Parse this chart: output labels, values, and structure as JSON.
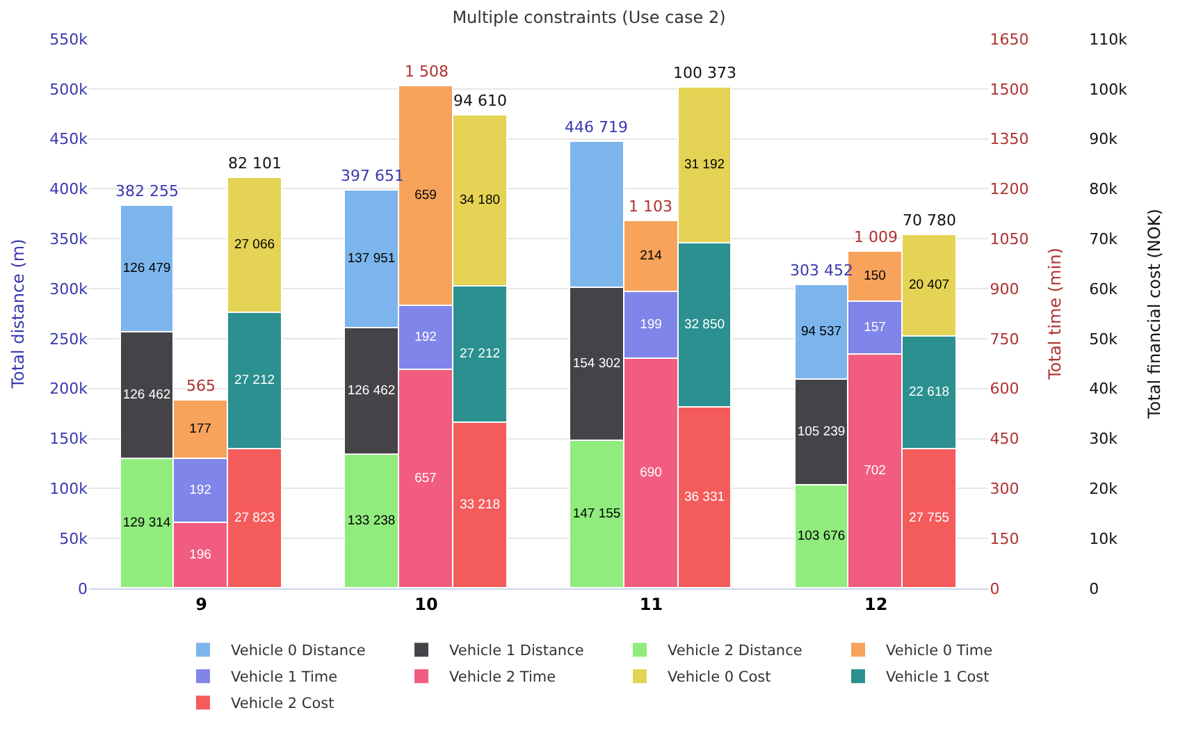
{
  "chart_data": {
    "type": "bar",
    "title": "Multiple constraints (Use case 2)",
    "ylabel": "Total distance (m)",
    "y2label": "Total time (min)",
    "y3label": "Total financial cost (NOK)",
    "categories": [
      "9",
      "10",
      "11",
      "12"
    ],
    "stacked": true,
    "legend": "bottom",
    "grid": "y",
    "ylim": [
      0,
      550000
    ],
    "yticks": [
      0,
      {
        "value": 50000,
        "label": "50k"
      },
      {
        "value": 100000,
        "label": "100k"
      },
      {
        "value": 150000,
        "label": "150k"
      },
      {
        "value": 200000,
        "label": "200k"
      },
      {
        "value": 250000,
        "label": "250k"
      },
      {
        "value": 300000,
        "label": "300k"
      },
      {
        "value": 350000,
        "label": "350k"
      },
      {
        "value": 400000,
        "label": "400k"
      },
      {
        "value": 450000,
        "label": "450k"
      },
      {
        "value": 500000,
        "label": "500k"
      },
      {
        "value": 550000,
        "label": "550k"
      }
    ],
    "y2lim": [
      0,
      1650
    ],
    "y2ticks": [
      0,
      150,
      300,
      450,
      600,
      750,
      900,
      1050,
      1200,
      1350,
      1500,
      1650
    ],
    "y3lim": [
      0,
      110000
    ],
    "y3ticks": [
      0,
      {
        "value": 10000,
        "label": "10k"
      },
      {
        "value": 20000,
        "label": "20k"
      },
      {
        "value": 30000,
        "label": "30k"
      },
      {
        "value": 40000,
        "label": "40k"
      },
      {
        "value": 50000,
        "label": "50k"
      },
      {
        "value": 60000,
        "label": "60k"
      },
      {
        "value": 70000,
        "label": "70k"
      },
      {
        "value": 80000,
        "label": "80k"
      },
      {
        "value": 90000,
        "label": "90k"
      },
      {
        "value": 100000,
        "label": "100k"
      },
      {
        "value": 110000,
        "label": "110k"
      }
    ],
    "series": [
      {
        "name": "Vehicle 2 Distance",
        "color": "#90ed7d",
        "axis": "y",
        "values": [
          129314,
          133238,
          147155,
          103676
        ],
        "value_labels": [
          "129 314",
          "133 238",
          "147 155",
          "103 676"
        ]
      },
      {
        "name": "Vehicle 1 Distance",
        "color": "#434348",
        "axis": "y",
        "values": [
          126462,
          126462,
          154302,
          105239
        ],
        "value_labels": [
          "126 462",
          "126 462",
          "154 302",
          "105 239"
        ]
      },
      {
        "name": "Vehicle 0 Distance",
        "color": "#7cb5ec",
        "axis": "y",
        "values": [
          126479,
          137951,
          145262,
          94537
        ],
        "value_labels": [
          "126 479",
          "137 951",
          null,
          "94 537"
        ]
      },
      {
        "name": "Vehicle 2 Time",
        "color": "#f15c80",
        "axis": "y2",
        "values": [
          196,
          657,
          690,
          702
        ],
        "value_labels": [
          "196",
          "657",
          "690",
          "702"
        ]
      },
      {
        "name": "Vehicle 1 Time",
        "color": "#8085e9",
        "axis": "y2",
        "values": [
          192,
          192,
          199,
          157
        ],
        "value_labels": [
          "192",
          "192",
          "199",
          "157"
        ]
      },
      {
        "name": "Vehicle 0 Time",
        "color": "#f7a35c",
        "axis": "y2",
        "values": [
          177,
          659,
          214,
          150
        ],
        "value_labels": [
          "177",
          "659",
          "214",
          "150"
        ]
      },
      {
        "name": "Vehicle 2 Cost",
        "color": "#f45b5b",
        "axis": "y3",
        "values": [
          27823,
          33218,
          36331,
          27755
        ],
        "value_labels": [
          "27 823",
          "33 218",
          "36 331",
          "27 755"
        ]
      },
      {
        "name": "Vehicle 1 Cost",
        "color": "#2b908f",
        "axis": "y3",
        "values": [
          27212,
          27212,
          32850,
          22618
        ],
        "value_labels": [
          "27 212",
          "27 212",
          "32 850",
          "22 618"
        ]
      },
      {
        "name": "Vehicle 0 Cost",
        "color": "#e4d354",
        "axis": "y3",
        "values": [
          27066,
          34180,
          31192,
          20407
        ],
        "value_labels": [
          "27 066",
          "34 180",
          "31 192",
          "20 407"
        ]
      }
    ],
    "totals": [
      "382 255",
      "397 651",
      "446 719",
      "303 452",
      "565",
      "1 508",
      "1 103",
      "1 009",
      "82 101",
      "94 610",
      "100 373",
      "70 780"
    ]
  }
}
